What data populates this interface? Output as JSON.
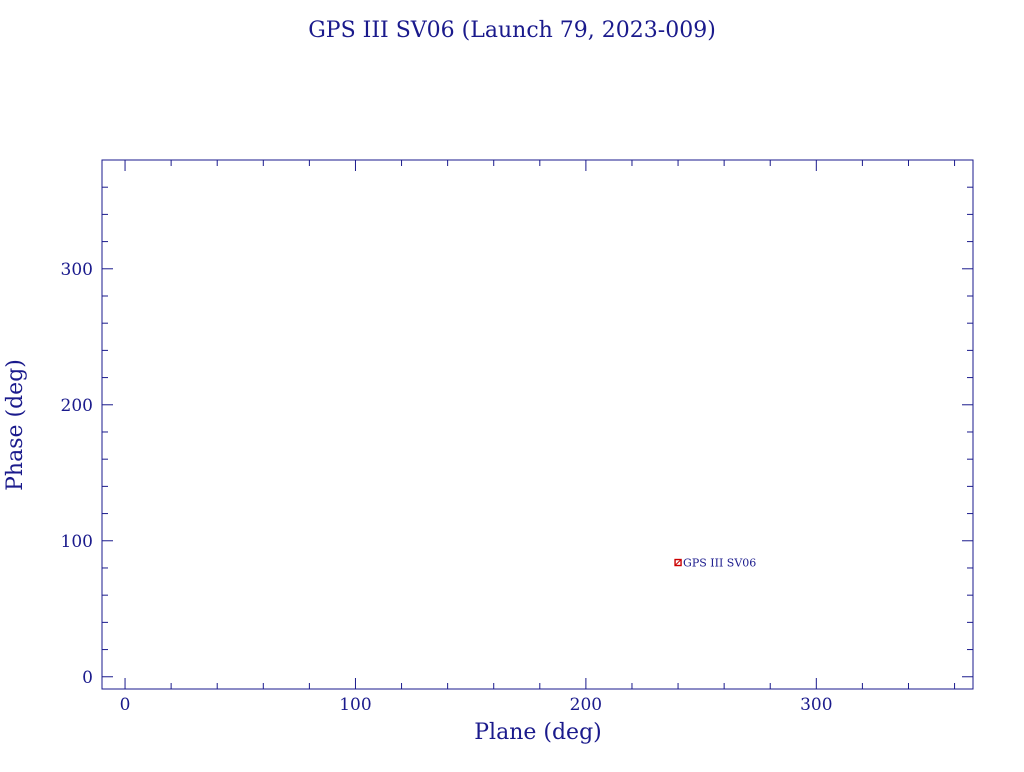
{
  "colors": {
    "axis": "#1a1a8c",
    "text": "#1a1a8c",
    "marker": "#cc0000",
    "background": "#ffffff"
  },
  "chart_data": {
    "type": "scatter",
    "title": "GPS III SV06 (Launch 79, 2023-009)",
    "xlabel": "Plane (deg)",
    "ylabel": "Phase (deg)",
    "xlim": [
      -10,
      368
    ],
    "ylim": [
      -9,
      380
    ],
    "x_ticks": [
      0,
      100,
      200,
      300
    ],
    "y_ticks": [
      0,
      100,
      200,
      300
    ],
    "x_ticks_minor_step": 20,
    "y_ticks_minor_step": 20,
    "grid": false,
    "legend": "none",
    "points": [
      {
        "x": 240,
        "y": 84,
        "label": "GPS III SV06",
        "marker": "square"
      }
    ]
  }
}
